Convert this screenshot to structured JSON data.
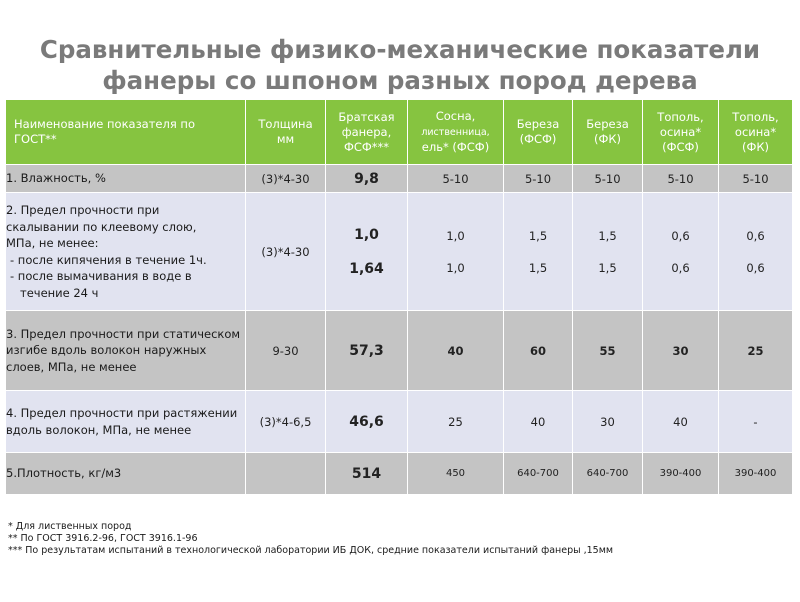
{
  "title": {
    "line1": "Сравнительные физико-механические показатели",
    "line2": "фанеры со шпоном разных пород дерева"
  },
  "table": {
    "headers": [
      "Наименование показателя по ГОСТ**",
      "Толщина мм",
      "Братская фанера, ФСФ***",
      "Сосна, лиственница, ель* (ФСФ)",
      "Береза (ФСФ)",
      "Береза (ФК)",
      "Тополь, осина* (ФСФ)",
      "Тополь, осина* (ФК)"
    ],
    "header_parts": {
      "c1a": "Наименование показателя по",
      "c1b": "ГОСТ**",
      "c2a": "Толщина",
      "c2b": "мм",
      "c3a": "Братская",
      "c3b": "фанера,",
      "c3c": "ФСФ***",
      "c4a": "Сосна,",
      "c4b": "лиственница,",
      "c4c": "ель* (ФСФ)",
      "c5a": "Береза",
      "c5b": "(ФСФ)",
      "c6a": "Береза",
      "c6b": "(ФК)",
      "c7a": "Тополь,",
      "c7b": "осина*",
      "c7c": "(ФСФ)",
      "c8a": "Тополь,",
      "c8b": "осина*",
      "c8c": "(ФК)"
    },
    "rows": [
      {
        "name": "1. Влажность, %",
        "thickness": "(3)*4-30",
        "values": [
          "9,8",
          "5-10",
          "5-10",
          "5-10",
          "5-10",
          "5-10"
        ]
      },
      {
        "name_lines": [
          "2. Предел прочности при",
          "скалывании по клеевому слою,",
          "МПа, не менее:"
        ],
        "sub_lines": [
          "- после кипячения в течение 1ч.",
          "- после вымачивания в воде в течение 24 ч"
        ],
        "thickness": "(3)*4-30",
        "values_a": [
          "1,0",
          "1,0",
          "1,5",
          "1,5",
          "0,6",
          "0,6"
        ],
        "values_b": [
          "1,64",
          "1,0",
          "1,5",
          "1,5",
          "0,6",
          "0,6"
        ]
      },
      {
        "name": "3. Предел прочности при статическом изгибе вдоль волокон наружных слоев, МПа, не менее",
        "thickness": "9-30",
        "values": [
          "57,3",
          "40",
          "60",
          "55",
          "30",
          "25"
        ]
      },
      {
        "name": "4. Предел прочности при растяжении вдоль волокон, МПа, не менее",
        "thickness": "(3)*4-6,5",
        "values": [
          "46,6",
          "25",
          "40",
          "30",
          "40",
          "-"
        ]
      },
      {
        "name": "5.Плотность, кг/м3",
        "thickness": "",
        "values": [
          "514",
          "450",
          "640-700",
          "640-700",
          "390-400",
          "390-400"
        ]
      }
    ]
  },
  "footnotes": [
    "* Для лиственных пород",
    "** По ГОСТ 3916.2-96, ГОСТ 3916.1-96",
    "*** По результатам испытаний в технологической лаборатории ИБ ДОК, средние показатели испытаний фанеры ,15мм"
  ],
  "colors": {
    "header_green": "#86c440",
    "row_dark": "#c4c4c4",
    "row_light": "#e1e3f0",
    "title_gray": "#7a7a7a"
  }
}
